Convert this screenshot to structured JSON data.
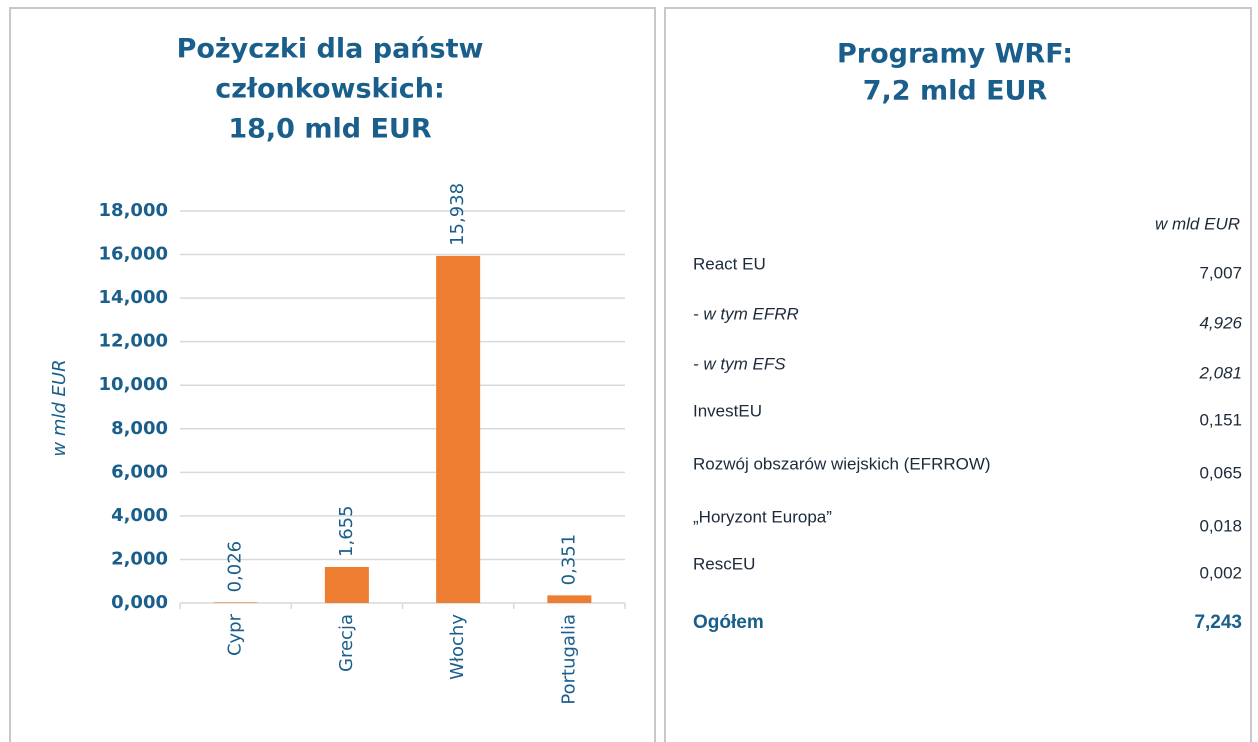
{
  "chart_data": {
    "type": "bar",
    "title": [
      "Pożyczki dla państw",
      "członkowskich:",
      "18,0 mld EUR"
    ],
    "y_label": "w mld EUR",
    "categories": [
      "Cypr",
      "Grecja",
      "Włochy",
      "Portugalia"
    ],
    "values": [
      0.026,
      1.655,
      15.938,
      0.351
    ],
    "value_labels": [
      "0,026",
      "1,655",
      "15,938",
      "0,351"
    ],
    "color": "#ed7d31",
    "ylim": [
      0,
      18
    ],
    "yticks": [
      {
        "value": 0,
        "label": "0,000"
      },
      {
        "value": 2,
        "label": "2,000"
      },
      {
        "value": 4,
        "label": "4,000"
      },
      {
        "value": 6,
        "label": "6,000"
      },
      {
        "value": 8,
        "label": "8,000"
      },
      {
        "value": 10,
        "label": "10,000"
      },
      {
        "value": 12,
        "label": "12,000"
      },
      {
        "value": 14,
        "label": "14,000"
      },
      {
        "value": 16,
        "label": "16,000"
      },
      {
        "value": 18,
        "label": "18,000"
      }
    ],
    "grid": true
  },
  "table": {
    "title": [
      "Programy WRF:",
      "7,2 mld EUR"
    ],
    "unit": "w mld EUR",
    "rows": [
      [
        "React EU",
        "7,007"
      ],
      [
        "- w tym EFRR",
        "4,926"
      ],
      [
        "- w tym EFS",
        "2,081"
      ],
      [
        "InvestEU",
        "0,151"
      ],
      [
        "Rozwój obszarów wiejskich (EFRROW)",
        "0,065"
      ],
      [
        "„Horyzont Europa”",
        "0,018"
      ],
      [
        "RescEU",
        "0,002"
      ],
      [
        "Ogółem",
        "7,243"
      ]
    ]
  }
}
